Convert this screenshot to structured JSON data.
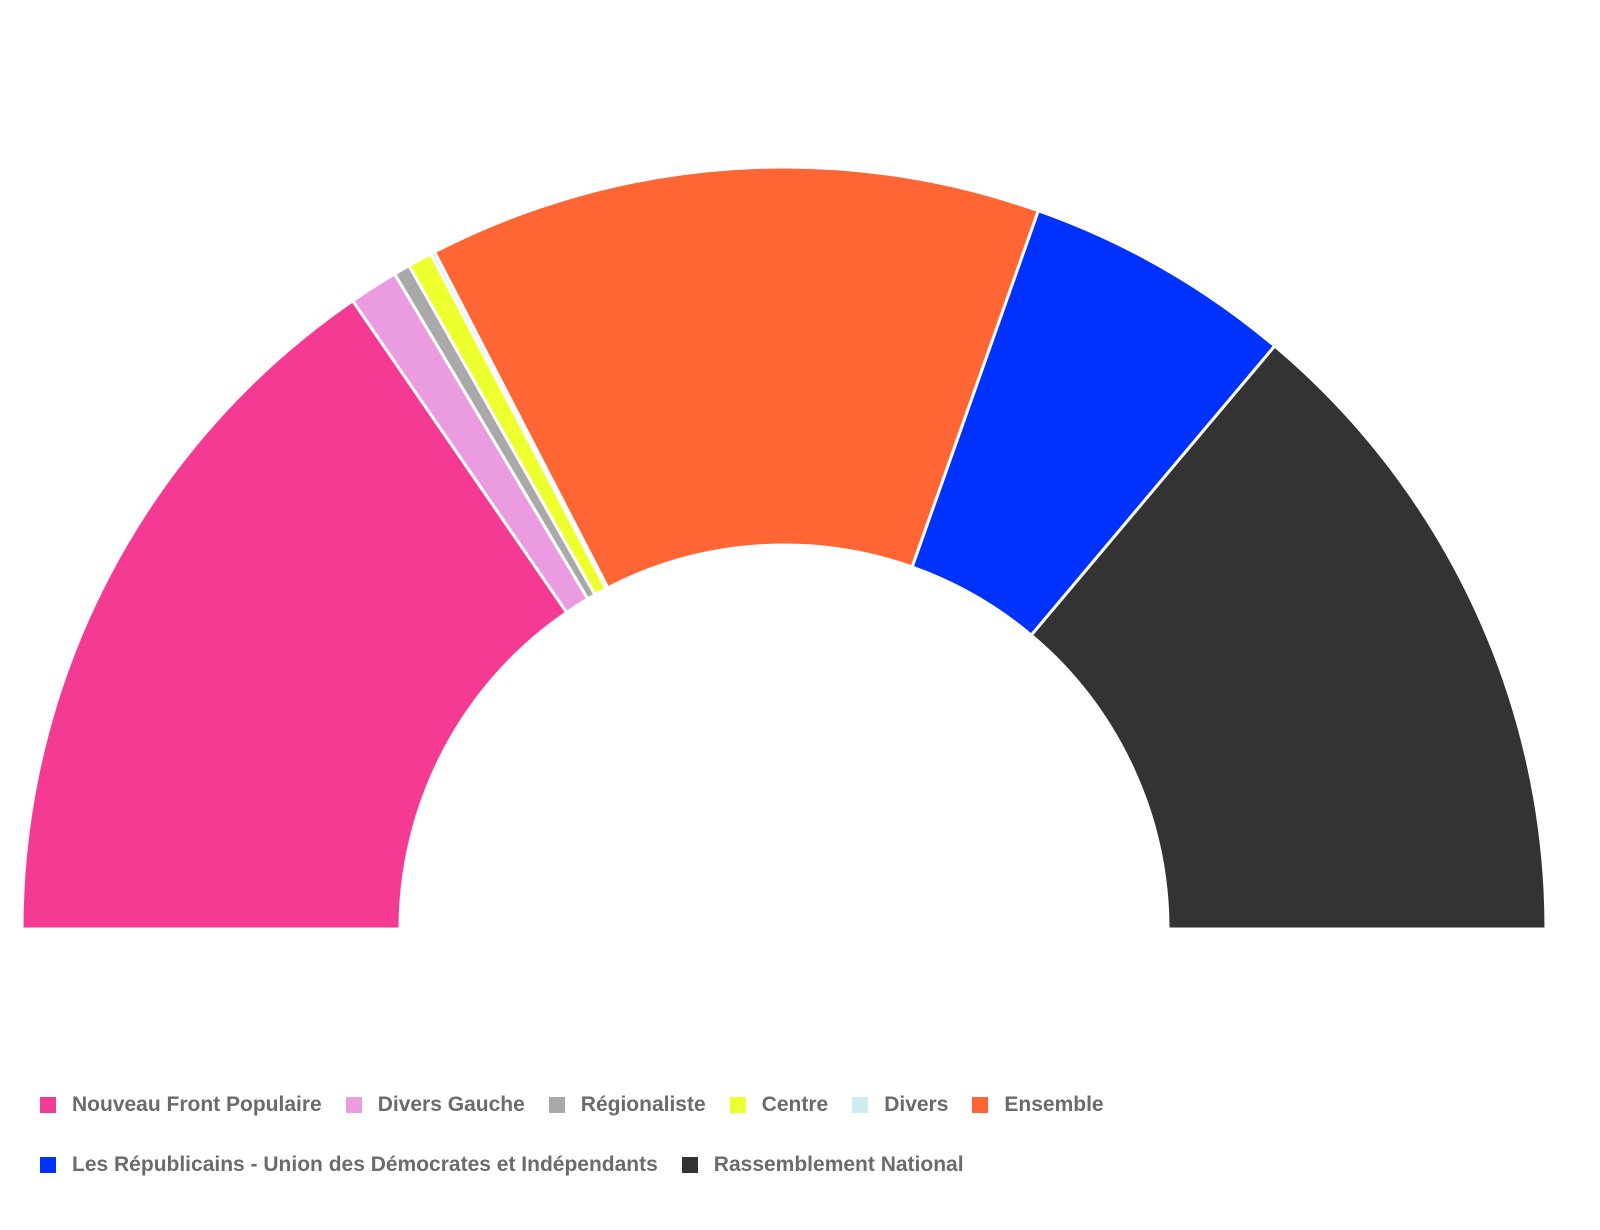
{
  "chart_data": {
    "type": "pie",
    "variant": "parliament-half-donut",
    "unit": "seats",
    "total": 577,
    "series": [
      {
        "name": "Nouveau Front Populaire",
        "value": 178,
        "color": "#F43A93"
      },
      {
        "name": "Divers Gauche",
        "value": 12,
        "color": "#EB9CE0"
      },
      {
        "name": "Régionaliste",
        "value": 4,
        "color": "#A9A9A9"
      },
      {
        "name": "Centre",
        "value": 6,
        "color": "#EEFF2E"
      },
      {
        "name": "Divers",
        "value": 1,
        "color": "#C9EDF0"
      },
      {
        "name": "Ensemble",
        "value": 150,
        "color": "#FF6633"
      },
      {
        "name": "Les Républicains - Union des Démocrates et Indépendants",
        "value": 66,
        "color": "#0032FF"
      },
      {
        "name": "Rassemblement National",
        "value": 160,
        "color": "#333333"
      }
    ],
    "legend_position": "bottom-left"
  }
}
